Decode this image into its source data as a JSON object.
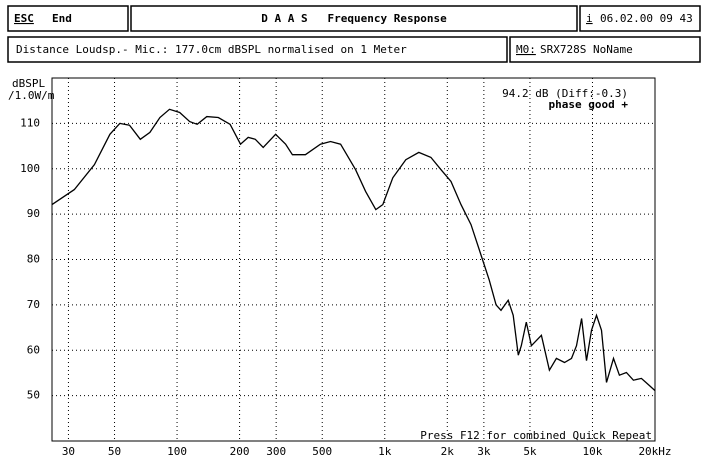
{
  "header": {
    "esc": "ESC",
    "end": "End",
    "title": "D A A S   Frequency Response",
    "date_key": "i",
    "date": "06.02.00 09 43",
    "info": "Distance Loudsp.- Mic.: 177.0cm dBSPL normalised on 1 Meter",
    "model_key": "M0:",
    "model": "SRX728S NoName"
  },
  "chart_data": {
    "type": "line",
    "ylabel": [
      "dBSPL",
      "/1.0W/m"
    ],
    "annotations": [
      "94.2 dB (Diff:-0.3)",
      "phase good +",
      "Press F12 for combined Quick Repeat"
    ],
    "xscale": "log",
    "xlim": [
      25,
      20000
    ],
    "ylim": [
      40,
      120
    ],
    "xticks": [
      30,
      50,
      100,
      200,
      300,
      500,
      {
        "value": 1000,
        "label": "1k"
      },
      {
        "value": 2000,
        "label": "2k"
      },
      {
        "value": 3000,
        "label": "3k"
      },
      {
        "value": 5000,
        "label": "5k"
      },
      {
        "value": 10000,
        "label": "10k"
      },
      {
        "value": 20000,
        "label": "20kHz"
      }
    ],
    "yticks": [
      50,
      60,
      70,
      80,
      90,
      100,
      110
    ],
    "grid": true,
    "x": [
      25,
      32,
      40,
      47.5,
      53,
      59,
      66.5,
      74,
      82.7,
      92,
      103,
      115,
      125,
      139,
      158,
      180,
      202,
      220,
      238,
      260,
      298,
      333,
      359,
      415,
      490,
      548,
      613,
      724,
      809,
      905,
      978,
      1093,
      1263,
      1459,
      1668,
      1865,
      2083,
      2328,
      2601,
      2907,
      3181,
      3437,
      3628,
      3927,
      4154,
      4395,
      4542,
      4804,
      5082,
      5677,
      6206,
      6703,
      7330,
      7929,
      8381,
      8860,
      9364,
      9893,
      10460,
      11055,
      11684,
      12620,
      13480,
      14570,
      15740,
      17210,
      18810,
      20000
    ],
    "series": [
      {
        "color": "#000000",
        "values": [
          92.1,
          95.4,
          100.9,
          107.6,
          110,
          109.6,
          106.5,
          108,
          111.3,
          113.1,
          112.4,
          110.4,
          109.8,
          111.5,
          111.3,
          109.8,
          105.4,
          106.9,
          106.5,
          104.7,
          107.6,
          105.4,
          103.1,
          103.1,
          105.4,
          106,
          105.4,
          99.8,
          95,
          91,
          92.1,
          98,
          102,
          103.6,
          102.5,
          99.8,
          97.2,
          92.1,
          87.7,
          81,
          75.5,
          70,
          68.8,
          71,
          67.7,
          58.9,
          61,
          66.2,
          61,
          63.3,
          55.6,
          58.2,
          57.3,
          58.2,
          61,
          67,
          57.7,
          64.4,
          67.7,
          64.4,
          52.9,
          58.2,
          54.5,
          55.1,
          53.4,
          53.8,
          52.2,
          51.1
        ]
      }
    ]
  }
}
